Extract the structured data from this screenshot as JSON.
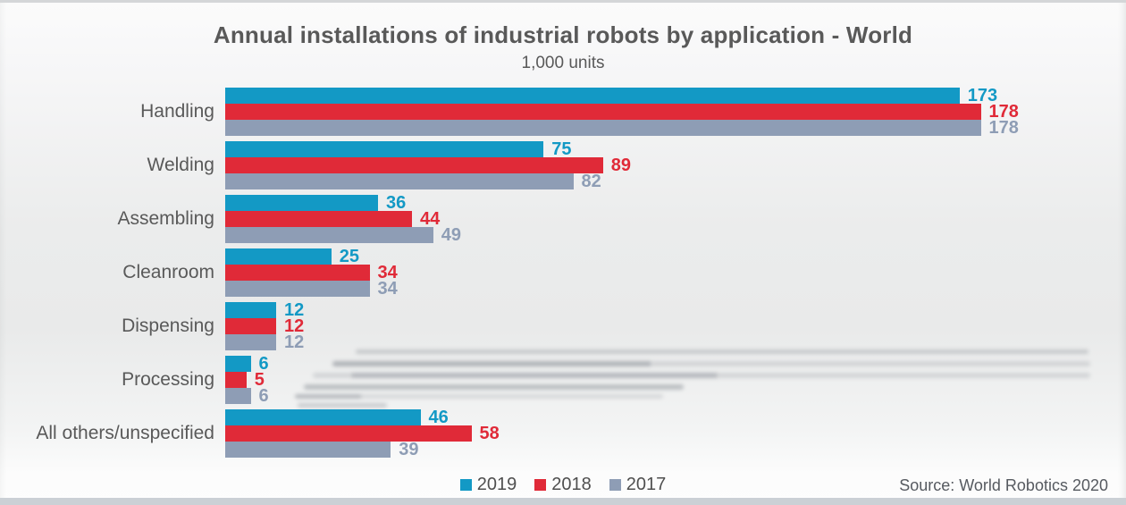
{
  "title": "Annual installations of industrial robots by application - World",
  "subtitle": "1,000 units",
  "source": "Source: World Robotics 2020",
  "colors": {
    "series_2019": "#1399c5",
    "series_2018": "#e02a38",
    "series_2017": "#8e9db5",
    "text": "#595959"
  },
  "chart_data": {
    "type": "bar",
    "orientation": "horizontal",
    "title": "Annual installations of industrial robots by application - World",
    "subtitle": "1,000 units",
    "xlabel": "",
    "ylabel": "",
    "xlim": [
      0,
      185
    ],
    "grid": false,
    "value_labels": true,
    "legend_position": "bottom-center",
    "categories": [
      "Handling",
      "Welding",
      "Assembling",
      "Cleanroom",
      "Dispensing",
      "Processing",
      "All others/unspecified"
    ],
    "series": [
      {
        "name": "2019",
        "color": "#1399c5",
        "values": [
          173,
          75,
          36,
          25,
          12,
          6,
          46
        ]
      },
      {
        "name": "2018",
        "color": "#e02a38",
        "values": [
          178,
          89,
          44,
          34,
          12,
          5,
          58
        ]
      },
      {
        "name": "2017",
        "color": "#8e9db5",
        "values": [
          178,
          82,
          49,
          34,
          12,
          6,
          39
        ]
      }
    ]
  }
}
